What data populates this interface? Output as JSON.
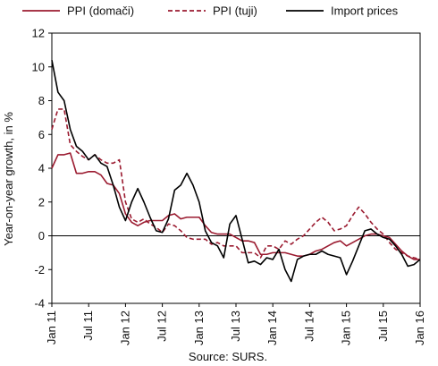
{
  "chart_data": {
    "type": "line",
    "ylabel": "Year-on-year growth, in %",
    "ylim": [
      -4,
      12
    ],
    "yticks": [
      -4,
      -2,
      0,
      2,
      4,
      6,
      8,
      10,
      12
    ],
    "x_tick_labels": [
      "Jan 11",
      "Jul 11",
      "Jan 12",
      "Jul 12",
      "Jan 13",
      "Jul 13",
      "Jan 14",
      "Jul 14",
      "Jan 15",
      "Jul 15",
      "Jan 16"
    ],
    "x_start": "Jan 11",
    "grid": false,
    "legend_placement": "top",
    "source": "Source: SURS.",
    "series": [
      {
        "name": "PPI (domači)",
        "color": "#9b1b30",
        "dash": "solid",
        "values": [
          4.0,
          4.8,
          4.8,
          4.9,
          3.7,
          3.7,
          3.8,
          3.8,
          3.6,
          3.1,
          3.0,
          2.5,
          1.3,
          0.8,
          0.6,
          0.8,
          0.9,
          0.9,
          0.9,
          1.2,
          1.3,
          1.0,
          1.1,
          1.1,
          1.1,
          0.6,
          0.2,
          0.1,
          0.1,
          0.1,
          -0.1,
          -0.3,
          -0.3,
          -0.4,
          -1.1,
          -1.1,
          -1.0,
          -1.0,
          -1.0,
          -1.1,
          -1.2,
          -1.2,
          -1.1,
          -0.9,
          -0.8,
          -0.6,
          -0.4,
          -0.3,
          -0.6,
          -0.4,
          -0.2,
          0.0,
          0.1,
          0.1,
          0.0,
          -0.1,
          -0.5,
          -0.9,
          -1.2,
          -1.4,
          -1.4
        ]
      },
      {
        "name": "PPI (tuji)",
        "color": "#9b1b30",
        "dash": "dashed",
        "values": [
          6.3,
          7.5,
          7.5,
          5.4,
          5.0,
          4.7,
          4.5,
          4.8,
          4.5,
          4.3,
          4.3,
          4.5,
          2.0,
          1.0,
          0.8,
          1.0,
          0.7,
          0.5,
          0.2,
          0.7,
          0.6,
          0.3,
          -0.1,
          -0.2,
          -0.2,
          -0.2,
          -0.5,
          -0.4,
          -0.6,
          -0.6,
          -0.6,
          -1.0,
          -1.0,
          -1.0,
          -1.3,
          -0.6,
          -0.6,
          -0.8,
          -0.3,
          -0.5,
          -0.2,
          0.0,
          0.4,
          0.8,
          1.1,
          0.8,
          0.3,
          0.4,
          0.6,
          1.2,
          1.7,
          1.3,
          0.8,
          0.4,
          0.1,
          -0.4,
          -0.8,
          -1.0,
          -1.2,
          -1.3,
          -1.4
        ]
      },
      {
        "name": "Import prices",
        "color": "#000000",
        "dash": "solid",
        "values": [
          10.4,
          8.5,
          8.0,
          6.3,
          5.3,
          5.0,
          4.5,
          4.8,
          4.3,
          4.1,
          3.0,
          1.7,
          0.9,
          2.0,
          2.8,
          2.0,
          1.1,
          0.3,
          0.2,
          1.0,
          2.7,
          3.0,
          3.7,
          3.0,
          2.0,
          0.3,
          -0.4,
          -0.6,
          -1.3,
          0.7,
          1.2,
          -0.2,
          -1.6,
          -1.5,
          -1.7,
          -1.3,
          -1.4,
          -0.8,
          -2.0,
          -2.7,
          -1.4,
          -1.2,
          -1.1,
          -1.1,
          -0.9,
          -1.1,
          -1.2,
          -1.3,
          -2.3,
          -1.5,
          -0.6,
          0.3,
          0.4,
          0.1,
          -0.1,
          -0.2,
          -0.6,
          -1.1,
          -1.8,
          -1.7,
          -1.4
        ]
      }
    ]
  }
}
